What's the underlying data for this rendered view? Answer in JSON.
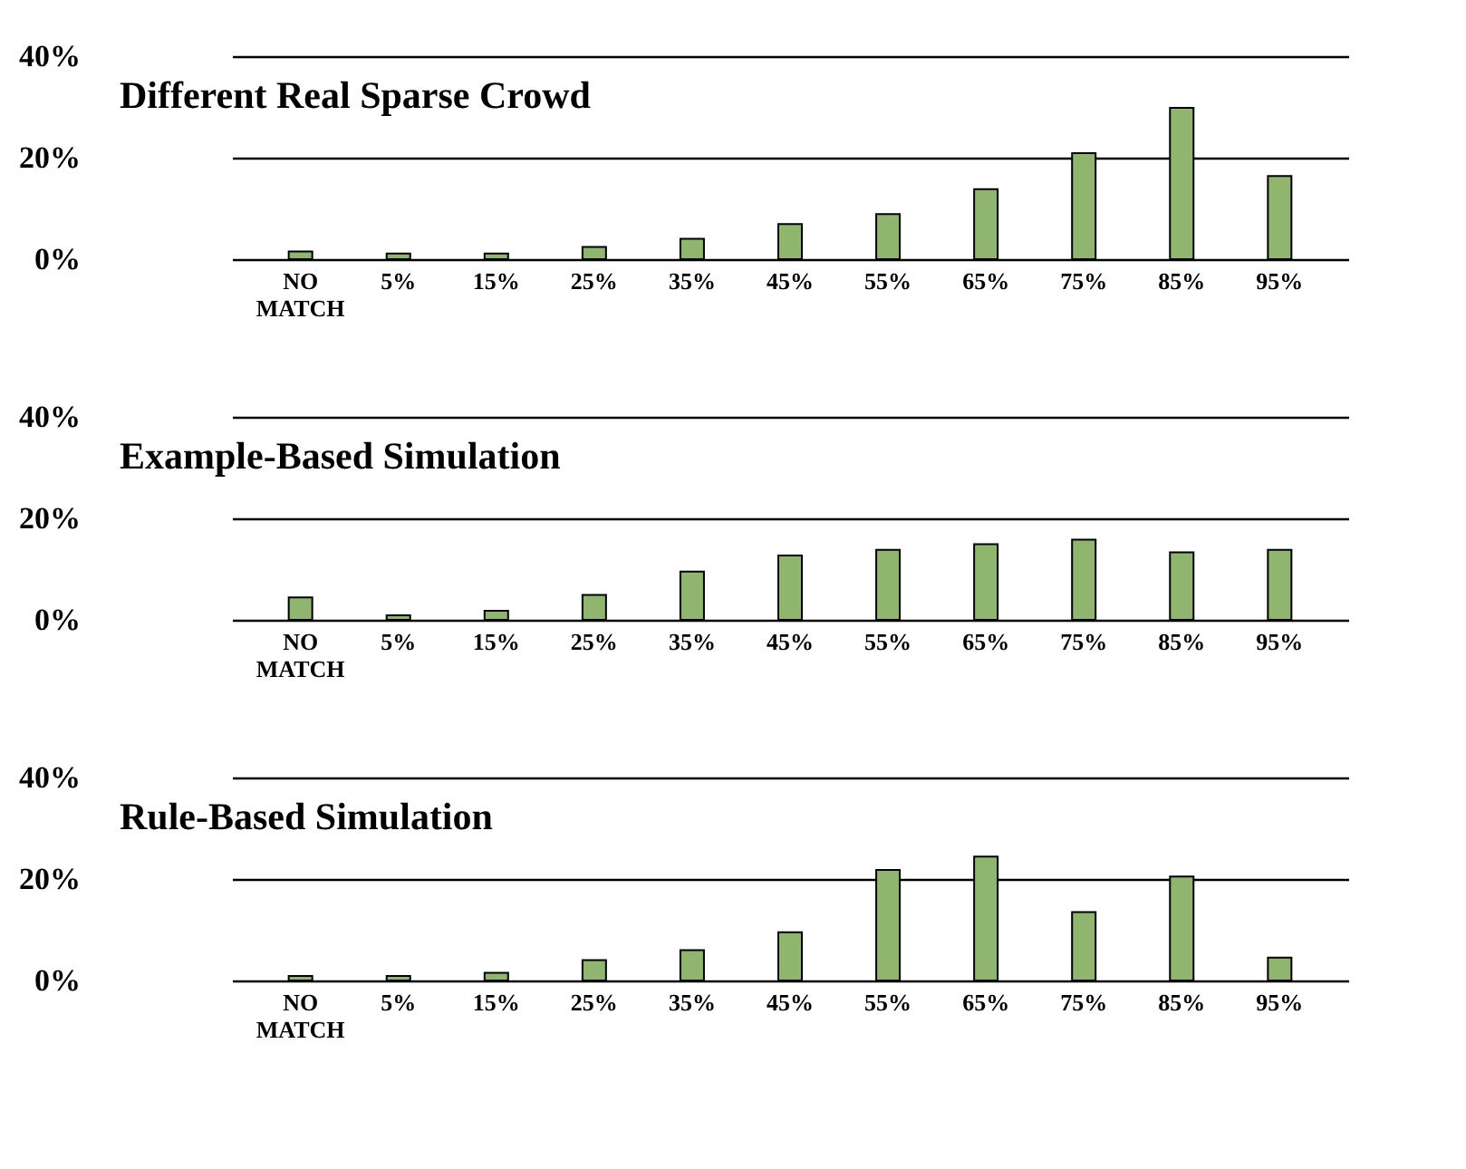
{
  "chart_data": [
    {
      "type": "bar",
      "title": "Different Real Sparse Crowd",
      "categories": [
        "NO MATCH",
        "5%",
        "15%",
        "25%",
        "35%",
        "45%",
        "55%",
        "65%",
        "75%",
        "85%",
        "95%"
      ],
      "values": [
        1.5,
        1.1,
        1.1,
        2.4,
        4,
        6.9,
        8.9,
        13.8,
        20.9,
        29.8,
        16.4
      ],
      "color": "#8fb56e",
      "ylim": [
        0,
        40
      ],
      "yticks": [
        {
          "value": 0,
          "label": "0%"
        },
        {
          "value": 20,
          "label": "20%"
        },
        {
          "value": 40,
          "label": "40%"
        }
      ],
      "grid": "y"
    },
    {
      "type": "bar",
      "title": "Example-Based Simulation",
      "categories": [
        "NO MATCH",
        "5%",
        "15%",
        "25%",
        "35%",
        "45%",
        "55%",
        "65%",
        "75%",
        "85%",
        "95%"
      ],
      "values": [
        4.4,
        0.9,
        1.8,
        4.9,
        9.5,
        12.7,
        13.8,
        14.9,
        15.8,
        13.3,
        13.8
      ],
      "color": "#8fb56e",
      "ylim": [
        0,
        40
      ],
      "yticks": [
        {
          "value": 0,
          "label": "0%"
        },
        {
          "value": 20,
          "label": "20%"
        },
        {
          "value": 40,
          "label": "40%"
        }
      ],
      "grid": "y"
    },
    {
      "type": "bar",
      "title": "Rule-Based Simulation",
      "categories": [
        "NO MATCH",
        "5%",
        "15%",
        "25%",
        "35%",
        "45%",
        "55%",
        "65%",
        "75%",
        "85%",
        "95%"
      ],
      "values": [
        0.9,
        0.9,
        1.5,
        4,
        6,
        9.5,
        21.8,
        24.4,
        13.5,
        20.5,
        4.5
      ],
      "color": "#8fb56e",
      "ylim": [
        0,
        40
      ],
      "yticks": [
        {
          "value": 0,
          "label": "0%"
        },
        {
          "value": 20,
          "label": "20%"
        },
        {
          "value": 40,
          "label": "40%"
        }
      ],
      "grid": "y"
    }
  ]
}
